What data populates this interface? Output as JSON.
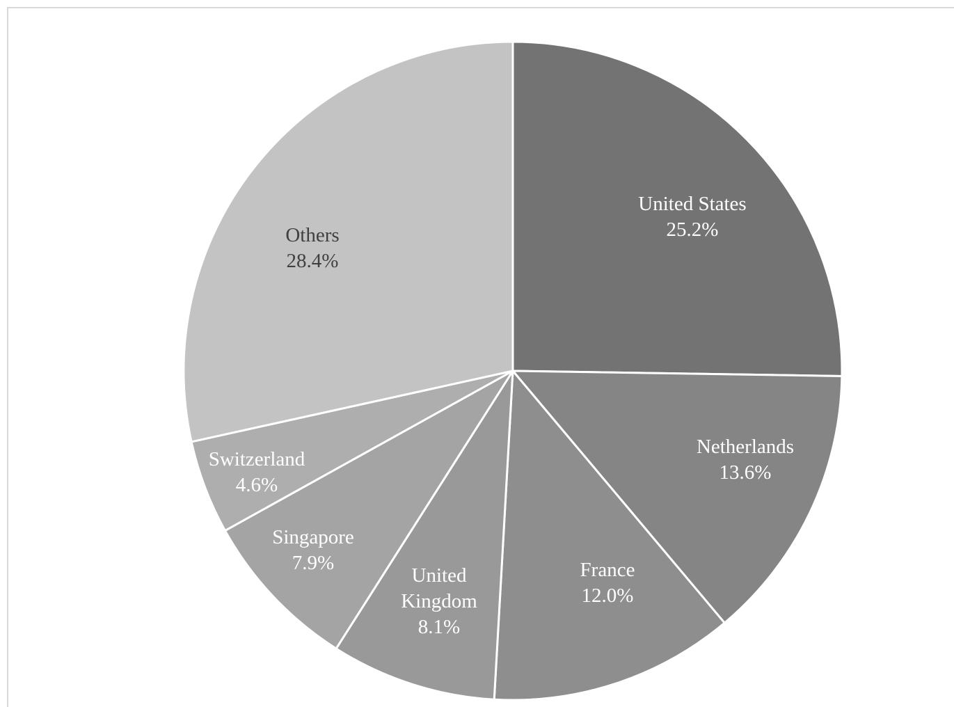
{
  "chart_data": {
    "type": "pie",
    "title": "",
    "slices": [
      {
        "label": "United States",
        "value": 25.2,
        "value_label": "25.2%",
        "color": "#737373",
        "text_color": "#ffffff"
      },
      {
        "label": "Netherlands",
        "value": 13.6,
        "value_label": "13.6%",
        "color": "#858585",
        "text_color": "#ffffff"
      },
      {
        "label": "France",
        "value": 12.0,
        "value_label": "12.0%",
        "color": "#8e8e8e",
        "text_color": "#ffffff"
      },
      {
        "label": "United Kingdom",
        "value": 8.1,
        "value_label": "8.1%",
        "color": "#999999",
        "text_color": "#ffffff"
      },
      {
        "label": "Singapore",
        "value": 7.9,
        "value_label": "7.9%",
        "color": "#a4a4a4",
        "text_color": "#ffffff"
      },
      {
        "label": "Switzerland",
        "value": 4.6,
        "value_label": "4.6%",
        "color": "#aeaeae",
        "text_color": "#ffffff"
      },
      {
        "label": "Others",
        "value": 28.4,
        "value_label": "28.4%",
        "color": "#c3c3c3",
        "text_color": "#404040"
      }
    ],
    "start_angle": "12 o'clock",
    "direction": "clockwise",
    "legend": "none",
    "label_position": "inside"
  }
}
